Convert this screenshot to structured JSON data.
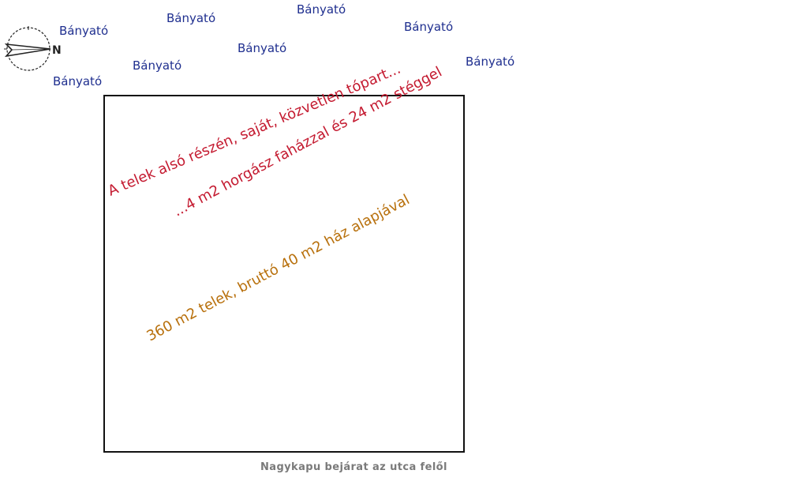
{
  "compass": {
    "direction_label": "N"
  },
  "lake_labels": [
    "Bányató",
    "Bányató",
    "Bányató",
    "Bányató",
    "Bányató",
    "Bányató",
    "Bányató",
    "Bányató"
  ],
  "annotations": {
    "line1": "A telek alsó részén, saját, közvetlen tópart...",
    "line2": "...4 m2 horgász faházzal és 24 m2 stéggel",
    "plot": "360 m2 telek, bruttó 40 m2 ház alapjával"
  },
  "gate_label": "Nagykapu bejárat az utca felől",
  "colors": {
    "lake": "#1f2f8f",
    "annotation_red": "#c41a30",
    "annotation_orange": "#b8700c",
    "gate": "#7a7a7a"
  }
}
